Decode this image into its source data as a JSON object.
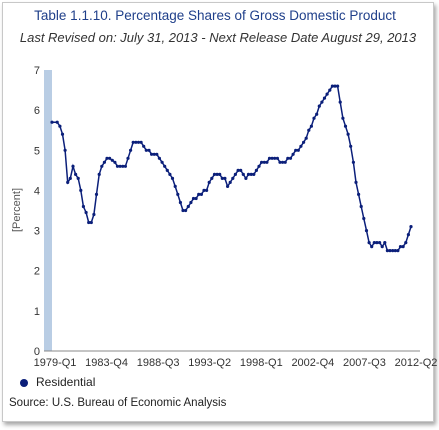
{
  "chart_data": {
    "type": "line",
    "title": "Table 1.1.10. Percentage Shares of Gross Domestic Product",
    "subtitle": "Last Revised on: July 31, 2013 - Next Release Date August 29, 2013",
    "ylabel": "[Percent]",
    "xlabel": "",
    "ylim": [
      0,
      7
    ],
    "yticks": [
      0,
      1,
      2,
      3,
      4,
      5,
      6,
      7
    ],
    "x_tick_labels": [
      "1979-Q1",
      "1983-Q4",
      "1988-Q3",
      "1993-Q2",
      "1998-Q1",
      "2002-Q4",
      "2007-Q3",
      "2012-Q2"
    ],
    "x_range": [
      1979.0,
      2013.25
    ],
    "grid": false,
    "legend_position": "bottom-left",
    "series": [
      {
        "name": "Residential",
        "color": "#0b1f7a",
        "points": [
          [
            1979.0,
            5.7
          ],
          [
            1979.5,
            5.7
          ],
          [
            1979.75,
            5.6
          ],
          [
            1980.0,
            5.4
          ],
          [
            1980.25,
            5.0
          ],
          [
            1980.5,
            4.2
          ],
          [
            1980.75,
            4.3
          ],
          [
            1981.0,
            4.6
          ],
          [
            1981.25,
            4.4
          ],
          [
            1981.5,
            4.3
          ],
          [
            1981.75,
            4.0
          ],
          [
            1982.0,
            3.6
          ],
          [
            1982.25,
            3.45
          ],
          [
            1982.5,
            3.2
          ],
          [
            1982.75,
            3.2
          ],
          [
            1983.0,
            3.4
          ],
          [
            1983.25,
            3.9
          ],
          [
            1983.5,
            4.4
          ],
          [
            1983.75,
            4.6
          ],
          [
            1984.0,
            4.7
          ],
          [
            1984.25,
            4.8
          ],
          [
            1984.5,
            4.8
          ],
          [
            1984.75,
            4.75
          ],
          [
            1985.0,
            4.7
          ],
          [
            1985.25,
            4.6
          ],
          [
            1985.5,
            4.6
          ],
          [
            1985.75,
            4.6
          ],
          [
            1986.0,
            4.6
          ],
          [
            1986.25,
            4.8
          ],
          [
            1986.5,
            5.0
          ],
          [
            1986.75,
            5.2
          ],
          [
            1987.0,
            5.2
          ],
          [
            1987.25,
            5.2
          ],
          [
            1987.5,
            5.2
          ],
          [
            1987.75,
            5.1
          ],
          [
            1988.0,
            5.0
          ],
          [
            1988.25,
            5.0
          ],
          [
            1988.5,
            4.9
          ],
          [
            1988.75,
            4.9
          ],
          [
            1989.0,
            4.9
          ],
          [
            1989.25,
            4.8
          ],
          [
            1989.5,
            4.7
          ],
          [
            1989.75,
            4.6
          ],
          [
            1990.0,
            4.5
          ],
          [
            1990.25,
            4.4
          ],
          [
            1990.5,
            4.3
          ],
          [
            1990.75,
            4.1
          ],
          [
            1991.0,
            3.9
          ],
          [
            1991.25,
            3.7
          ],
          [
            1991.5,
            3.5
          ],
          [
            1991.75,
            3.5
          ],
          [
            1992.0,
            3.6
          ],
          [
            1992.25,
            3.7
          ],
          [
            1992.5,
            3.8
          ],
          [
            1992.75,
            3.8
          ],
          [
            1993.0,
            3.9
          ],
          [
            1993.25,
            3.9
          ],
          [
            1993.5,
            4.0
          ],
          [
            1993.75,
            4.0
          ],
          [
            1994.0,
            4.2
          ],
          [
            1994.25,
            4.3
          ],
          [
            1994.5,
            4.4
          ],
          [
            1994.75,
            4.4
          ],
          [
            1995.0,
            4.4
          ],
          [
            1995.25,
            4.3
          ],
          [
            1995.5,
            4.3
          ],
          [
            1995.75,
            4.1
          ],
          [
            1996.0,
            4.2
          ],
          [
            1996.25,
            4.3
          ],
          [
            1996.5,
            4.4
          ],
          [
            1996.75,
            4.5
          ],
          [
            1997.0,
            4.5
          ],
          [
            1997.25,
            4.4
          ],
          [
            1997.5,
            4.3
          ],
          [
            1997.75,
            4.4
          ],
          [
            1998.0,
            4.4
          ],
          [
            1998.25,
            4.4
          ],
          [
            1998.5,
            4.5
          ],
          [
            1998.75,
            4.6
          ],
          [
            1999.0,
            4.7
          ],
          [
            1999.25,
            4.7
          ],
          [
            1999.5,
            4.7
          ],
          [
            1999.75,
            4.8
          ],
          [
            2000.0,
            4.8
          ],
          [
            2000.25,
            4.8
          ],
          [
            2000.5,
            4.8
          ],
          [
            2000.75,
            4.7
          ],
          [
            2001.0,
            4.7
          ],
          [
            2001.25,
            4.7
          ],
          [
            2001.5,
            4.8
          ],
          [
            2001.75,
            4.8
          ],
          [
            2002.0,
            4.9
          ],
          [
            2002.25,
            5.0
          ],
          [
            2002.5,
            5.0
          ],
          [
            2002.75,
            5.1
          ],
          [
            2003.0,
            5.2
          ],
          [
            2003.25,
            5.3
          ],
          [
            2003.5,
            5.5
          ],
          [
            2003.75,
            5.6
          ],
          [
            2004.0,
            5.8
          ],
          [
            2004.25,
            5.9
          ],
          [
            2004.5,
            6.1
          ],
          [
            2004.75,
            6.2
          ],
          [
            2005.0,
            6.3
          ],
          [
            2005.25,
            6.4
          ],
          [
            2005.5,
            6.5
          ],
          [
            2005.75,
            6.6
          ],
          [
            2006.0,
            6.6
          ],
          [
            2006.25,
            6.6
          ],
          [
            2006.5,
            6.2
          ],
          [
            2006.75,
            5.8
          ],
          [
            2007.0,
            5.6
          ],
          [
            2007.25,
            5.4
          ],
          [
            2007.5,
            5.1
          ],
          [
            2007.75,
            4.7
          ],
          [
            2008.0,
            4.2
          ],
          [
            2008.25,
            3.9
          ],
          [
            2008.5,
            3.6
          ],
          [
            2008.75,
            3.3
          ],
          [
            2009.0,
            3.0
          ],
          [
            2009.25,
            2.7
          ],
          [
            2009.5,
            2.6
          ],
          [
            2009.75,
            2.7
          ],
          [
            2010.0,
            2.7
          ],
          [
            2010.25,
            2.7
          ],
          [
            2010.5,
            2.6
          ],
          [
            2010.75,
            2.7
          ],
          [
            2011.0,
            2.5
          ],
          [
            2011.25,
            2.5
          ],
          [
            2011.5,
            2.5
          ],
          [
            2011.75,
            2.5
          ],
          [
            2012.0,
            2.5
          ],
          [
            2012.25,
            2.6
          ],
          [
            2012.5,
            2.6
          ],
          [
            2012.75,
            2.7
          ],
          [
            2013.0,
            2.9
          ],
          [
            2013.25,
            3.1
          ]
        ]
      }
    ]
  },
  "source": "Source: U.S. Bureau of Economic Analysis",
  "colors": {
    "line": "#0b1f7a",
    "title": "#1f3f8a",
    "axis_band": "#b9cde4"
  }
}
